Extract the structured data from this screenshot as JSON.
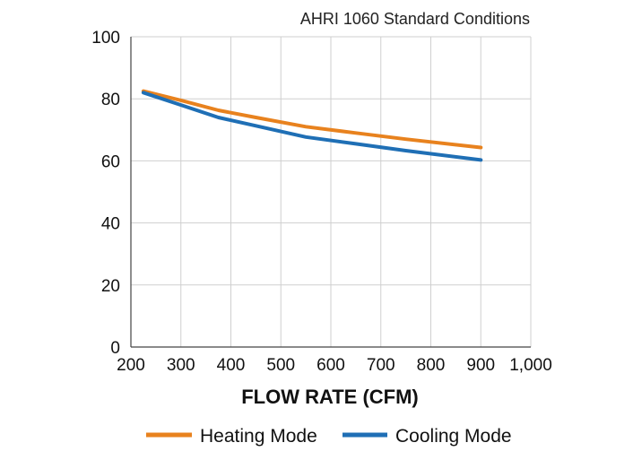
{
  "chart_data": {
    "type": "line",
    "title": "",
    "subtitle": "AHRI 1060 Standard Conditions",
    "xlabel": "FLOW RATE (CFM)",
    "ylabel": "",
    "xlim": [
      200,
      1000
    ],
    "ylim": [
      0,
      100
    ],
    "x_ticks": [
      200,
      300,
      400,
      500,
      600,
      700,
      800,
      900,
      1000
    ],
    "x_tick_labels": [
      "200",
      "300",
      "400",
      "500",
      "600",
      "700",
      "800",
      "900",
      "1,000"
    ],
    "y_ticks": [
      0,
      20,
      40,
      60,
      80,
      100
    ],
    "y_tick_labels": [
      "0",
      "20",
      "40",
      "60",
      "80",
      "100"
    ],
    "grid": true,
    "legend_position": "bottom",
    "series": [
      {
        "name": "Heating Mode",
        "color": "#E8821E",
        "x": [
          225,
          300,
          375,
          450,
          550,
          650,
          750,
          900
        ],
        "y": [
          82.5,
          79.5,
          76.3,
          74,
          71,
          69,
          67,
          64.3
        ]
      },
      {
        "name": "Cooling Mode",
        "color": "#1F6FB5",
        "x": [
          225,
          300,
          375,
          450,
          550,
          650,
          750,
          900
        ],
        "y": [
          82,
          78,
          74,
          71.3,
          67.7,
          65.5,
          63.3,
          60.3
        ]
      }
    ]
  }
}
